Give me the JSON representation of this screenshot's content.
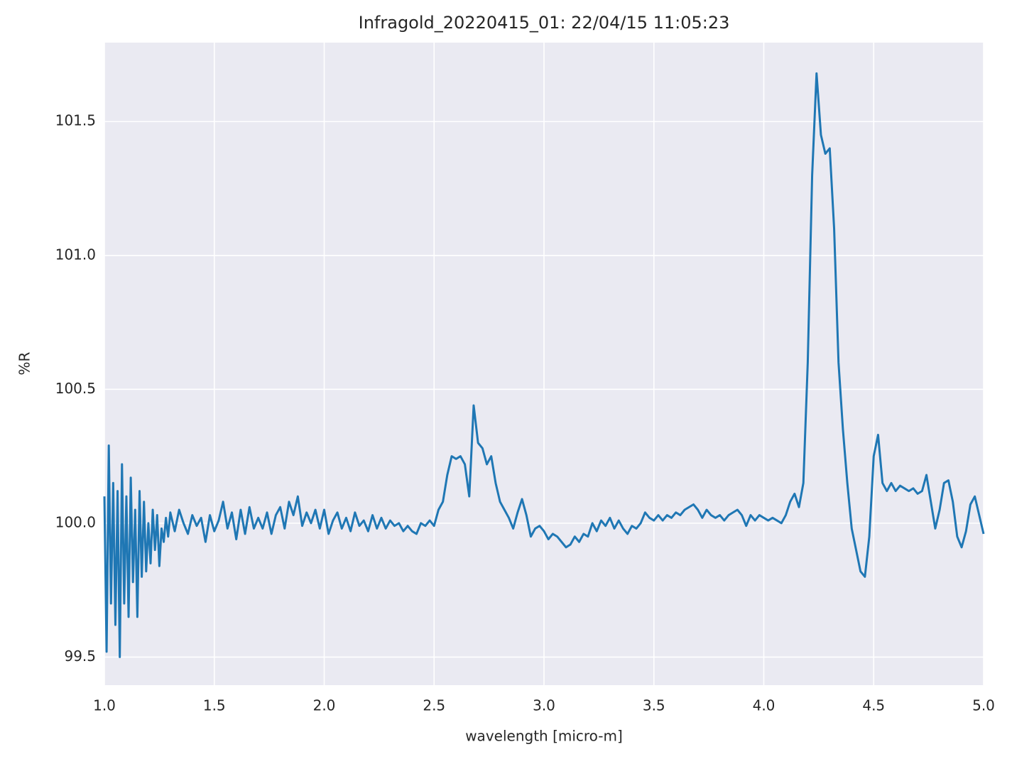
{
  "chart_data": {
    "type": "line",
    "title": "Infragold_20220415_01:  22/04/15 11:05:23",
    "xlabel": "wavelength [micro-m]",
    "ylabel": "%R",
    "xlim": [
      1,
      5
    ],
    "ylim": [
      99.395,
      101.795
    ],
    "xticks": [
      {
        "value": 1,
        "label": "1.0"
      },
      1.5,
      {
        "value": 2,
        "label": "2.0"
      },
      2.5,
      {
        "value": 3,
        "label": "3.0"
      },
      3.5,
      {
        "value": 4,
        "label": "4.0"
      },
      4.5,
      {
        "value": 5,
        "label": "5.0"
      }
    ],
    "yticks": [
      99.5,
      {
        "value": 100,
        "label": "100.0"
      },
      100.5,
      {
        "value": 101,
        "label": "101.0"
      },
      101.5
    ],
    "grid": true,
    "series": [
      {
        "color": "#1f77b4",
        "x": [
          1.0,
          1.01,
          1.02,
          1.03,
          1.04,
          1.05,
          1.06,
          1.07,
          1.08,
          1.09,
          1.1,
          1.11,
          1.12,
          1.13,
          1.14,
          1.15,
          1.16,
          1.17,
          1.18,
          1.19,
          1.2,
          1.21,
          1.22,
          1.23,
          1.24,
          1.25,
          1.26,
          1.27,
          1.28,
          1.29,
          1.3,
          1.32,
          1.34,
          1.36,
          1.38,
          1.4,
          1.42,
          1.44,
          1.46,
          1.48,
          1.5,
          1.52,
          1.54,
          1.56,
          1.58,
          1.6,
          1.62,
          1.64,
          1.66,
          1.68,
          1.7,
          1.72,
          1.74,
          1.76,
          1.78,
          1.8,
          1.82,
          1.84,
          1.86,
          1.88,
          1.9,
          1.92,
          1.94,
          1.96,
          1.98,
          2.0,
          2.02,
          2.04,
          2.06,
          2.08,
          2.1,
          2.12,
          2.14,
          2.16,
          2.18,
          2.2,
          2.22,
          2.24,
          2.26,
          2.28,
          2.3,
          2.32,
          2.34,
          2.36,
          2.38,
          2.4,
          2.42,
          2.44,
          2.46,
          2.48,
          2.5,
          2.52,
          2.54,
          2.56,
          2.58,
          2.6,
          2.62,
          2.64,
          2.66,
          2.68,
          2.7,
          2.72,
          2.74,
          2.76,
          2.78,
          2.8,
          2.82,
          2.84,
          2.86,
          2.88,
          2.9,
          2.92,
          2.94,
          2.96,
          2.98,
          3.0,
          3.02,
          3.04,
          3.06,
          3.08,
          3.1,
          3.12,
          3.14,
          3.16,
          3.18,
          3.2,
          3.22,
          3.24,
          3.26,
          3.28,
          3.3,
          3.32,
          3.34,
          3.36,
          3.38,
          3.4,
          3.42,
          3.44,
          3.46,
          3.48,
          3.5,
          3.52,
          3.54,
          3.56,
          3.58,
          3.6,
          3.62,
          3.64,
          3.66,
          3.68,
          3.7,
          3.72,
          3.74,
          3.76,
          3.78,
          3.8,
          3.82,
          3.84,
          3.86,
          3.88,
          3.9,
          3.92,
          3.94,
          3.96,
          3.98,
          4.0,
          4.02,
          4.04,
          4.06,
          4.08,
          4.1,
          4.12,
          4.14,
          4.16,
          4.18,
          4.2,
          4.22,
          4.24,
          4.26,
          4.28,
          4.3,
          4.32,
          4.34,
          4.36,
          4.38,
          4.4,
          4.42,
          4.44,
          4.46,
          4.48,
          4.5,
          4.52,
          4.54,
          4.56,
          4.58,
          4.6,
          4.62,
          4.64,
          4.66,
          4.68,
          4.7,
          4.72,
          4.74,
          4.76,
          4.78,
          4.8,
          4.82,
          4.84,
          4.86,
          4.88,
          4.9,
          4.92,
          4.94,
          4.96,
          4.98,
          5.0
        ],
        "values": [
          100.1,
          99.52,
          100.29,
          99.7,
          100.15,
          99.62,
          100.12,
          99.5,
          100.22,
          99.7,
          100.1,
          99.65,
          100.17,
          99.78,
          100.05,
          99.65,
          100.12,
          99.8,
          100.08,
          99.82,
          100.0,
          99.85,
          100.05,
          99.9,
          100.03,
          99.84,
          99.98,
          99.93,
          100.02,
          99.95,
          100.04,
          99.97,
          100.05,
          100.0,
          99.96,
          100.03,
          99.99,
          100.02,
          99.93,
          100.03,
          99.97,
          100.01,
          100.08,
          99.98,
          100.04,
          99.94,
          100.05,
          99.96,
          100.06,
          99.98,
          100.02,
          99.98,
          100.04,
          99.96,
          100.03,
          100.06,
          99.98,
          100.08,
          100.03,
          100.1,
          99.99,
          100.04,
          100.0,
          100.05,
          99.98,
          100.05,
          99.96,
          100.01,
          100.04,
          99.98,
          100.02,
          99.97,
          100.04,
          99.99,
          100.01,
          99.97,
          100.03,
          99.98,
          100.02,
          99.98,
          100.01,
          99.99,
          100.0,
          99.97,
          99.99,
          99.97,
          99.96,
          100.0,
          99.99,
          100.01,
          99.99,
          100.05,
          100.08,
          100.18,
          100.25,
          100.24,
          100.25,
          100.22,
          100.1,
          100.44,
          100.3,
          100.28,
          100.22,
          100.25,
          100.15,
          100.08,
          100.05,
          100.02,
          99.98,
          100.04,
          100.09,
          100.03,
          99.95,
          99.98,
          99.99,
          99.97,
          99.94,
          99.96,
          99.95,
          99.93,
          99.91,
          99.92,
          99.95,
          99.93,
          99.96,
          99.95,
          100.0,
          99.97,
          100.01,
          99.99,
          100.02,
          99.98,
          100.01,
          99.98,
          99.96,
          99.99,
          99.98,
          100.0,
          100.04,
          100.02,
          100.01,
          100.03,
          100.01,
          100.03,
          100.02,
          100.04,
          100.03,
          100.05,
          100.06,
          100.07,
          100.05,
          100.02,
          100.05,
          100.03,
          100.02,
          100.03,
          100.01,
          100.03,
          100.04,
          100.05,
          100.03,
          99.99,
          100.03,
          100.01,
          100.03,
          100.02,
          100.01,
          100.02,
          100.01,
          100.0,
          100.03,
          100.08,
          100.11,
          100.06,
          100.15,
          100.6,
          101.3,
          101.68,
          101.45,
          101.38,
          101.4,
          101.1,
          100.6,
          100.35,
          100.15,
          99.98,
          99.9,
          99.82,
          99.8,
          99.95,
          100.25,
          100.33,
          100.15,
          100.12,
          100.15,
          100.12,
          100.14,
          100.13,
          100.12,
          100.13,
          100.11,
          100.12,
          100.18,
          100.08,
          99.98,
          100.05,
          100.15,
          100.16,
          100.08,
          99.95,
          99.91,
          99.97,
          100.07,
          100.1,
          100.03,
          99.96
        ]
      }
    ]
  }
}
